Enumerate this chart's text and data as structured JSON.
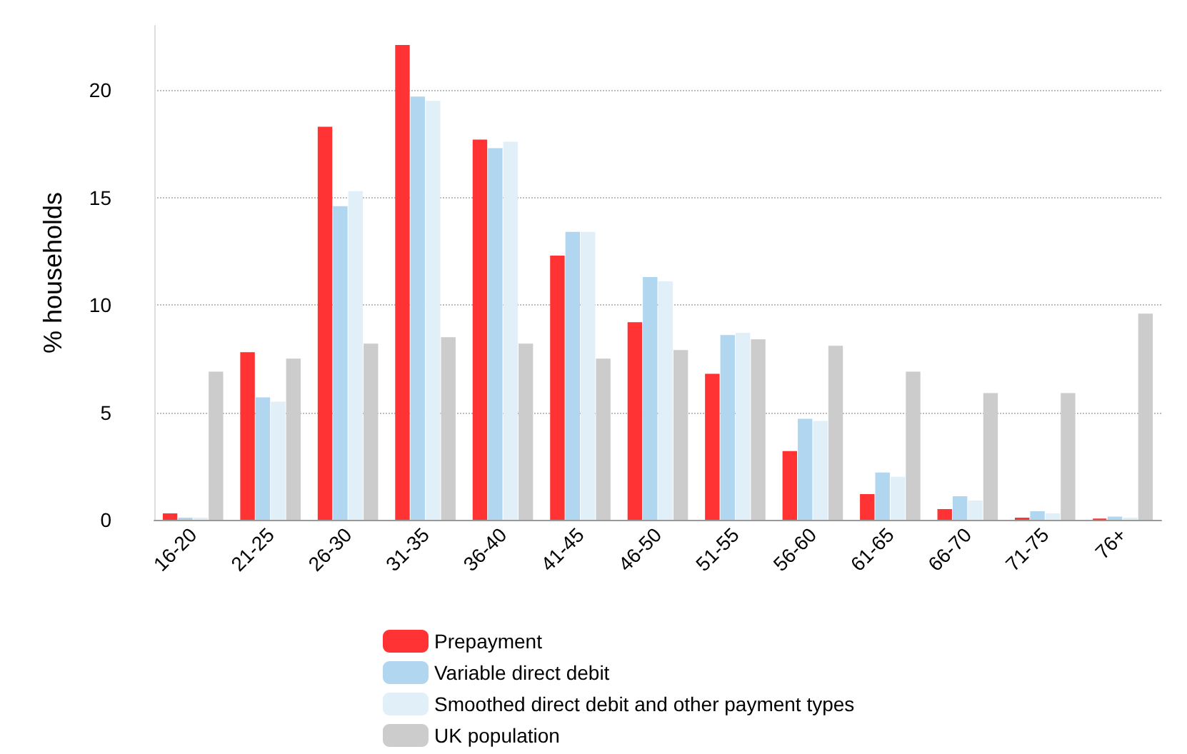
{
  "chart_data": {
    "type": "bar",
    "ylabel": "% households",
    "categories": [
      "16-20",
      "21-25",
      "26-30",
      "31-35",
      "36-40",
      "41-45",
      "46-50",
      "51-55",
      "56-60",
      "61-65",
      "66-70",
      "71-75",
      "76+"
    ],
    "series": [
      {
        "name": "Prepayment",
        "color": "#ff3333",
        "values": [
          0.3,
          7.8,
          18.3,
          22.1,
          17.7,
          12.3,
          9.2,
          6.8,
          3.2,
          1.2,
          0.5,
          0.1,
          0.05
        ]
      },
      {
        "name": "Variable direct debit",
        "color": "#b0d6f0",
        "values": [
          0.1,
          5.7,
          14.6,
          19.7,
          17.3,
          13.4,
          11.3,
          8.6,
          4.7,
          2.2,
          1.1,
          0.4,
          0.15
        ]
      },
      {
        "name": "Smoothed direct debit and other payment types",
        "color": "#e0eff8",
        "values": [
          0.1,
          5.5,
          15.3,
          19.5,
          17.6,
          13.4,
          11.1,
          8.7,
          4.6,
          2.0,
          0.9,
          0.3,
          0.1
        ]
      },
      {
        "name": "UK population",
        "color": "#cccccc",
        "values": [
          6.9,
          7.5,
          8.2,
          8.5,
          8.2,
          7.5,
          7.9,
          8.4,
          8.1,
          6.9,
          5.9,
          5.9,
          9.6
        ]
      }
    ],
    "ylim": [
      0,
      23
    ],
    "yticks": [
      0,
      5,
      10,
      15,
      20
    ],
    "grid": "y",
    "legend": "bottom"
  }
}
